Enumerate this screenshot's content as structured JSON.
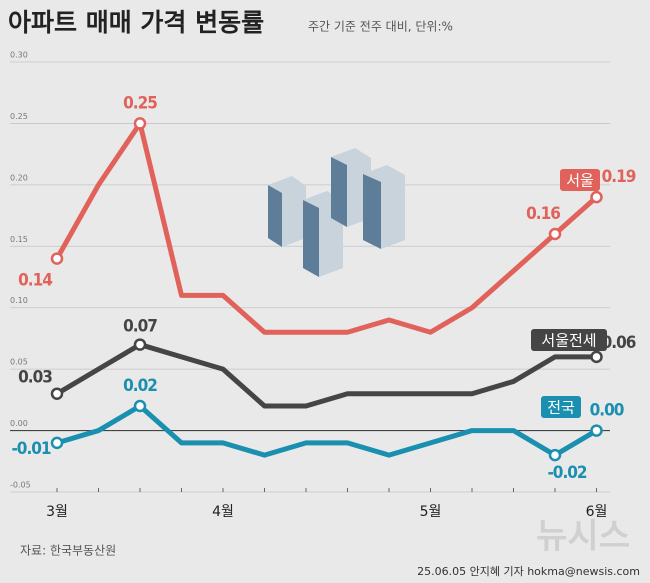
{
  "chart_data": {
    "type": "line",
    "title": "아파트 매매 가격 변동률",
    "subtitle": "주간 기준 전주 대비, 단위:%",
    "categories": [
      "3월",
      null,
      null,
      null,
      "4월",
      null,
      null,
      null,
      null,
      "5월",
      null,
      null,
      null,
      "6월"
    ],
    "ylim": [
      -0.05,
      0.3
    ],
    "yticks": [
      {
        "value": 0.3,
        "label": "0.30"
      },
      0.25,
      {
        "value": 0.2,
        "label": "0.20"
      },
      0.15,
      {
        "value": 0.1,
        "label": "0.10"
      },
      0.05,
      {
        "value": 0,
        "label": "0.00"
      },
      -0.05
    ],
    "grid": true,
    "series": [
      {
        "name": "서울",
        "color": "#e0625a",
        "values": [
          0.14,
          0.2,
          0.25,
          0.11,
          0.11,
          0.08,
          0.08,
          0.08,
          0.09,
          0.08,
          0.1,
          0.13,
          0.16,
          0.19
        ],
        "value_labels": [
          "0.14",
          null,
          "0.25",
          null,
          null,
          null,
          null,
          null,
          null,
          null,
          null,
          null,
          "0.16",
          "0.19"
        ]
      },
      {
        "name": "서울전세",
        "color": "#454545",
        "values": [
          0.03,
          0.05,
          0.07,
          0.06,
          0.05,
          0.02,
          0.02,
          0.03,
          0.03,
          0.03,
          0.03,
          0.04,
          0.06,
          0.06
        ],
        "value_labels": [
          "0.03",
          null,
          "0.07",
          null,
          null,
          null,
          null,
          null,
          null,
          null,
          null,
          null,
          null,
          "0.06"
        ]
      },
      {
        "name": "전국",
        "color": "#1a8fb0",
        "values": [
          -0.01,
          0.0,
          0.02,
          -0.01,
          -0.01,
          -0.02,
          -0.01,
          -0.01,
          -0.02,
          -0.01,
          0.0,
          0.0,
          -0.02,
          0.0
        ],
        "value_labels": [
          "-0.01",
          null,
          "0.02",
          null,
          null,
          null,
          null,
          null,
          null,
          null,
          null,
          null,
          "-0.02",
          "0.00"
        ]
      }
    ],
    "source": "자료: 한국부동산원",
    "credit": "25.06.05 안지혜 기자 hokma@newsis.com",
    "watermark": "뉴시스"
  }
}
